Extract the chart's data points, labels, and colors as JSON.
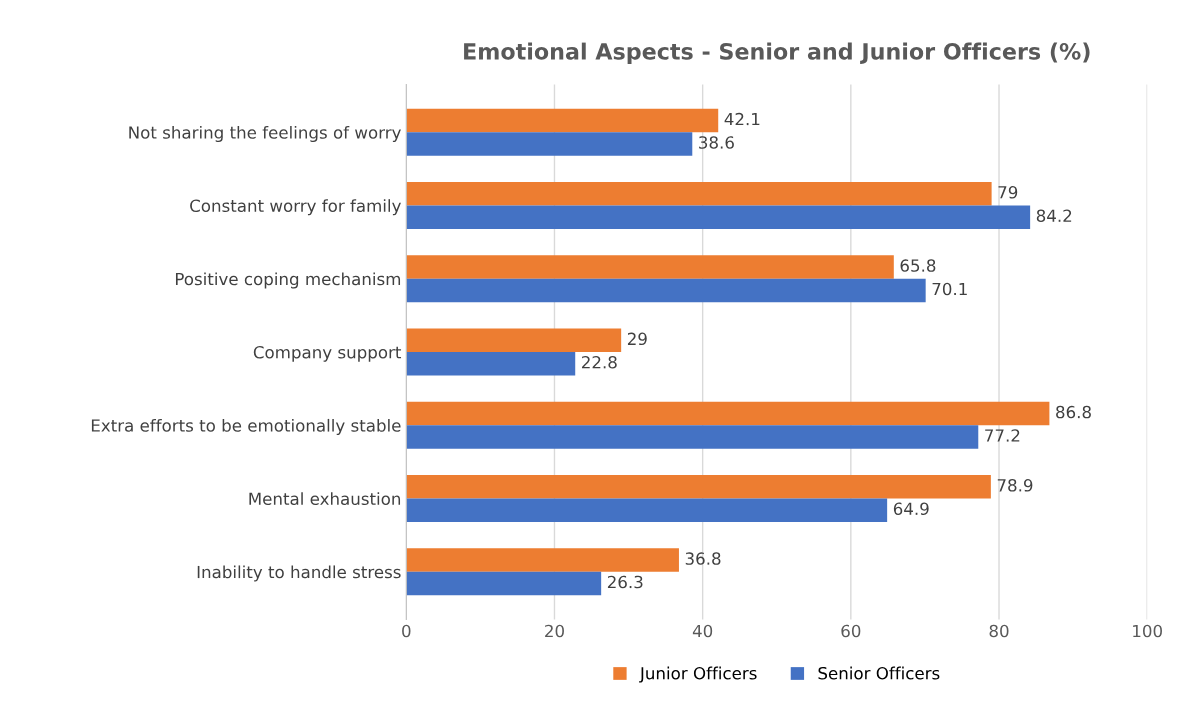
{
  "chart_data": {
    "type": "bar",
    "orientation": "horizontal",
    "title": "Emotional Aspects - Senior and Junior Officers (%)",
    "categories": [
      "Not sharing the feelings of worry",
      "Constant worry for family",
      "Positive coping mechanism",
      "Company support",
      "Extra efforts to be emotionally stable",
      "Mental exhaustion",
      "Inability to handle stress"
    ],
    "series": [
      {
        "name": "Junior Officers",
        "color": "#ed7d31",
        "values": [
          42.1,
          79,
          65.8,
          29,
          86.8,
          78.9,
          36.8
        ]
      },
      {
        "name": "Senior Officers",
        "color": "#4472c4",
        "values": [
          38.6,
          84.2,
          70.1,
          22.8,
          77.2,
          64.9,
          26.3
        ]
      }
    ],
    "xlim": [
      0,
      100
    ],
    "xticks": [
      0,
      20,
      40,
      60,
      80,
      100
    ],
    "grid": "x",
    "legend": "bottom",
    "data_labels": true
  }
}
